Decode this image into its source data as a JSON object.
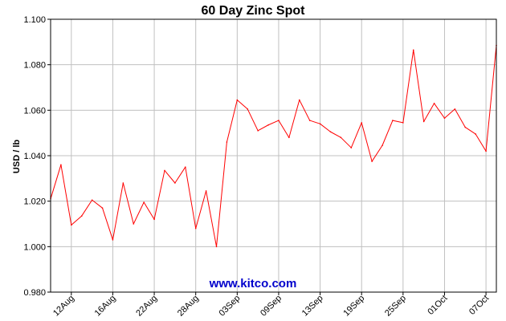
{
  "colors": {
    "line": "#ff0000",
    "grid": "#c0c0c0",
    "axis": "#000000",
    "watermark": "#0000cc",
    "background": "#ffffff"
  },
  "chart_data": {
    "type": "line",
    "title": "60 Day Zinc Spot",
    "ylabel": "USD / lb",
    "xlabel": "",
    "watermark": "www.kitco.com",
    "ylim": [
      0.98,
      1.1
    ],
    "ytick_values": [
      0.98,
      1.0,
      1.02,
      1.04,
      1.06,
      1.08,
      1.1
    ],
    "ytick_labels": [
      "0.980",
      "1.000",
      "1.020",
      "1.040",
      "1.060",
      "1.080",
      "1.100"
    ],
    "xtick_labels": [
      "12Aug",
      "16Aug",
      "22Aug",
      "28Aug",
      "03Sep",
      "09Sep",
      "13Sep",
      "19Sep",
      "25Sep",
      "01Oct",
      "07Oct"
    ],
    "xtick_index": [
      2,
      6,
      10,
      14,
      18,
      22,
      26,
      30,
      34,
      38,
      42
    ],
    "grid": true,
    "series": [
      {
        "values": [
          1.021,
          1.036,
          1.0095,
          1.0135,
          1.0205,
          1.017,
          1.003,
          1.028,
          1.01,
          1.0195,
          1.012,
          1.0335,
          1.028,
          1.035,
          1.008,
          1.0245,
          1.0,
          1.046,
          1.0645,
          1.0605,
          1.051,
          1.0535,
          1.0555,
          1.048,
          1.0645,
          1.0555,
          1.054,
          1.0505,
          1.048,
          1.0435,
          1.0545,
          1.0375,
          1.0445,
          1.0555,
          1.0545,
          1.0865,
          1.055,
          1.063,
          1.0565,
          1.0605,
          1.0525,
          1.0495,
          1.042,
          1.0885
        ]
      }
    ]
  }
}
